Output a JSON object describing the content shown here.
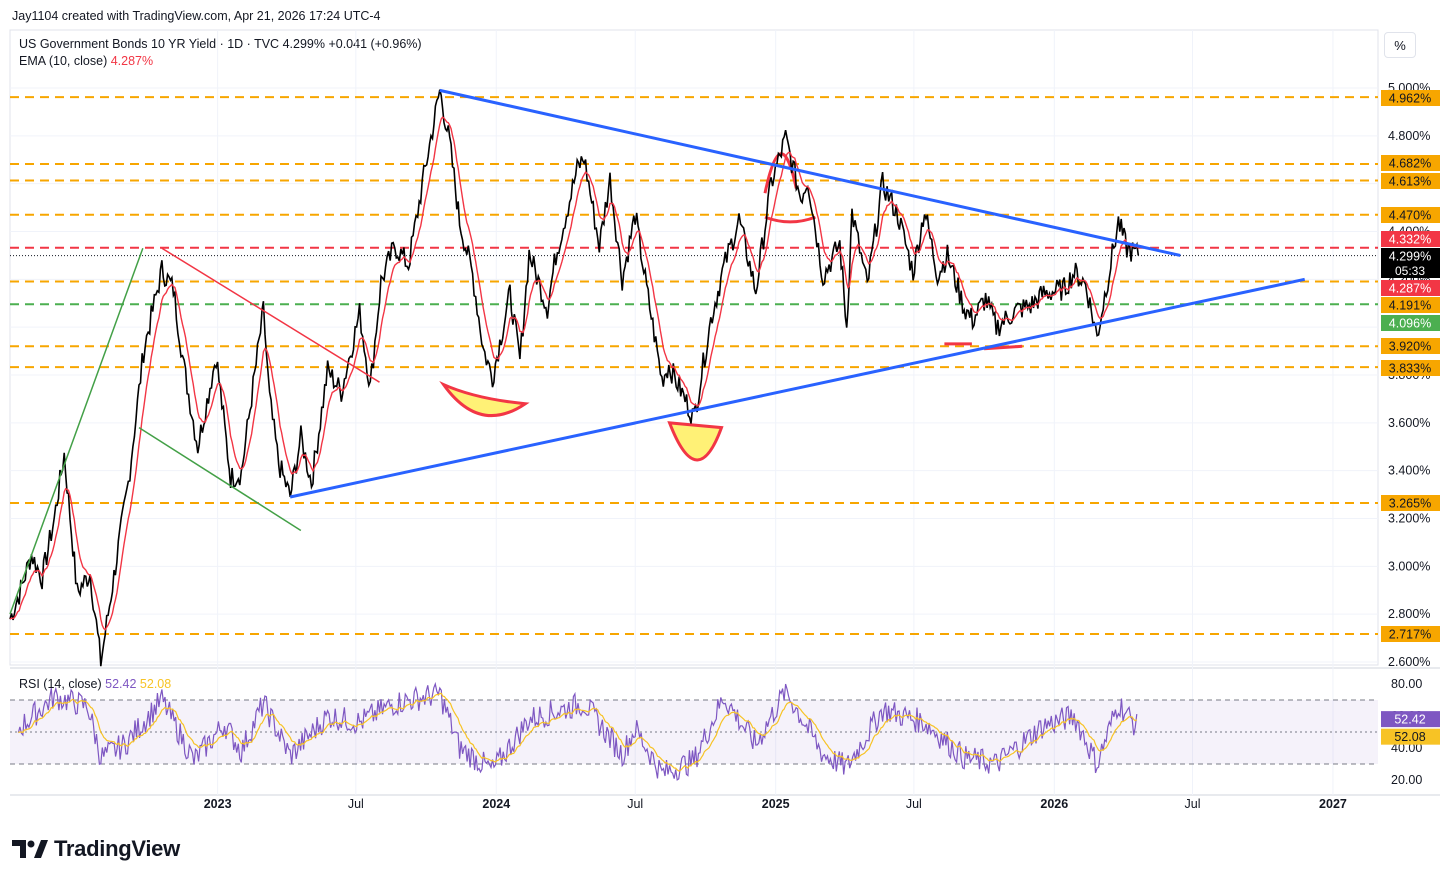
{
  "header": {
    "created_by": "Jay1104 created with TradingView.com, Apr 21, 2026 17:24 UTC-4"
  },
  "legend": {
    "symbol": "US Government Bonds 10 YR Yield · 1D · TVC",
    "last": "4.299%",
    "change": "+0.041 (+0.96%)",
    "ema_label": "EMA (10, close)",
    "ema_value": "4.287%"
  },
  "toolbar": {
    "percent_button": "%"
  },
  "price_axis": {
    "ticks": [
      "5.000%",
      "4.800%",
      "4.600%",
      "4.400%",
      "4.200%",
      "4.000%",
      "3.800%",
      "3.600%",
      "3.400%",
      "3.200%",
      "3.000%",
      "2.800%",
      "2.600%"
    ],
    "level_labels": [
      "4.962%",
      "4.682%",
      "4.613%",
      "4.470%",
      "4.332%",
      "4.299%",
      "05:33",
      "4.287%",
      "4.191%",
      "4.096%",
      "3.920%",
      "3.833%",
      "3.265%",
      "2.717%"
    ]
  },
  "time_axis": {
    "labels": [
      "2023",
      "Jul",
      "2024",
      "Jul",
      "2025",
      "Jul",
      "2026",
      "Jul",
      "2027"
    ]
  },
  "rsi": {
    "label": "RSI (14, close)",
    "value": "52.42",
    "ma_value": "52.08",
    "ticks": [
      "80.00",
      "60.00",
      "40.00",
      "20.00"
    ]
  },
  "brand": {
    "name": "TradingView"
  },
  "colors": {
    "price_line": "#000000",
    "ema": "#f23645",
    "trendline_blue": "#2962ff",
    "level_orange": "#f7a600",
    "level_red": "#f23645",
    "level_green": "#22ab94",
    "rsi_line": "#7e57c2",
    "rsi_ma": "#f7c325",
    "annotation_fill": "#fff176"
  },
  "chart_data": {
    "type": "line",
    "title": "US Government Bonds 10 YR Yield · 1D · TVC",
    "ylim": [
      2.55,
      5.05
    ],
    "x_range": [
      "2022-04-04",
      "2027-03-01"
    ],
    "series": [
      {
        "name": "US Government Bonds 10 YR Yield",
        "points": [
          [
            "2022-04-04",
            2.78
          ],
          [
            "2022-04-18",
            2.9
          ],
          [
            "2022-05-02",
            3.05
          ],
          [
            "2022-05-16",
            2.95
          ],
          [
            "2022-06-01",
            3.2
          ],
          [
            "2022-06-14",
            3.47
          ],
          [
            "2022-07-01",
            2.89
          ],
          [
            "2022-07-18",
            2.97
          ],
          [
            "2022-08-01",
            2.6
          ],
          [
            "2022-08-22",
            3.04
          ],
          [
            "2022-09-06",
            3.35
          ],
          [
            "2022-09-26",
            3.9
          ],
          [
            "2022-10-20",
            4.24
          ],
          [
            "2022-11-04",
            4.16
          ],
          [
            "2022-11-18",
            3.83
          ],
          [
            "2022-12-06",
            3.5
          ],
          [
            "2022-12-30",
            3.88
          ],
          [
            "2023-01-18",
            3.37
          ],
          [
            "2023-02-01",
            3.39
          ],
          [
            "2023-03-02",
            4.07
          ],
          [
            "2023-03-10",
            3.7
          ],
          [
            "2023-03-22",
            3.43
          ],
          [
            "2023-04-06",
            3.29
          ],
          [
            "2023-04-20",
            3.54
          ],
          [
            "2023-05-04",
            3.35
          ],
          [
            "2023-05-25",
            3.82
          ],
          [
            "2023-06-12",
            3.73
          ],
          [
            "2023-07-06",
            4.06
          ],
          [
            "2023-07-20",
            3.75
          ],
          [
            "2023-08-03",
            4.19
          ],
          [
            "2023-08-21",
            4.34
          ],
          [
            "2023-09-08",
            4.26
          ],
          [
            "2023-09-28",
            4.63
          ],
          [
            "2023-10-19",
            4.99
          ],
          [
            "2023-11-01",
            4.77
          ],
          [
            "2023-11-14",
            4.44
          ],
          [
            "2023-12-01",
            4.22
          ],
          [
            "2023-12-15",
            3.91
          ],
          [
            "2023-12-27",
            3.79
          ],
          [
            "2024-01-19",
            4.14
          ],
          [
            "2024-02-01",
            3.86
          ],
          [
            "2024-02-13",
            4.31
          ],
          [
            "2024-03-08",
            4.08
          ],
          [
            "2024-03-19",
            4.3
          ],
          [
            "2024-04-16",
            4.66
          ],
          [
            "2024-04-25",
            4.71
          ],
          [
            "2024-05-15",
            4.34
          ],
          [
            "2024-05-29",
            4.62
          ],
          [
            "2024-06-14",
            4.2
          ],
          [
            "2024-07-01",
            4.47
          ],
          [
            "2024-07-16",
            4.16
          ],
          [
            "2024-08-05",
            3.78
          ],
          [
            "2024-08-14",
            3.84
          ],
          [
            "2024-09-16",
            3.62
          ],
          [
            "2024-10-08",
            4.03
          ],
          [
            "2024-10-25",
            4.25
          ],
          [
            "2024-11-14",
            4.45
          ],
          [
            "2024-12-06",
            4.15
          ],
          [
            "2024-12-26",
            4.6
          ],
          [
            "2025-01-14",
            4.79
          ],
          [
            "2025-02-03",
            4.54
          ],
          [
            "2025-02-12",
            4.62
          ],
          [
            "2025-03-04",
            4.21
          ],
          [
            "2025-03-26",
            4.35
          ],
          [
            "2025-04-04",
            4.0
          ],
          [
            "2025-04-11",
            4.48
          ],
          [
            "2025-05-01",
            4.17
          ],
          [
            "2025-05-21",
            4.6
          ],
          [
            "2025-06-10",
            4.47
          ],
          [
            "2025-06-30",
            4.23
          ],
          [
            "2025-07-15",
            4.49
          ],
          [
            "2025-08-01",
            4.22
          ],
          [
            "2025-08-14",
            4.3
          ],
          [
            "2025-09-05",
            4.08
          ],
          [
            "2025-09-16",
            4.03
          ],
          [
            "2025-10-03",
            4.12
          ],
          [
            "2025-10-17",
            4.0
          ],
          [
            "2025-11-12",
            4.07
          ],
          [
            "2025-12-01",
            4.09
          ],
          [
            "2025-12-18",
            4.14
          ],
          [
            "2026-01-14",
            4.16
          ],
          [
            "2026-01-27",
            4.23
          ],
          [
            "2026-02-11",
            4.18
          ],
          [
            "2026-02-26",
            3.96
          ],
          [
            "2026-03-12",
            4.2
          ],
          [
            "2026-03-26",
            4.44
          ],
          [
            "2026-04-06",
            4.33
          ],
          [
            "2026-04-21",
            4.3
          ]
        ]
      }
    ],
    "horizontal_levels": [
      4.962,
      4.682,
      4.613,
      4.47,
      4.332,
      4.287,
      4.191,
      4.096,
      3.92,
      3.833,
      3.265,
      2.717
    ],
    "trendlines": [
      {
        "from": [
          "2023-10-19",
          4.99
        ],
        "to": [
          "2026-06-15",
          4.3
        ]
      },
      {
        "from": [
          "2023-04-06",
          3.29
        ],
        "to": [
          "2026-11-25",
          4.2
        ]
      },
      {
        "from": [
          "2022-10-20",
          4.33
        ],
        "to": [
          "2023-08-01",
          3.77
        ]
      },
      {
        "from": [
          "2022-09-20",
          3.58
        ],
        "to": [
          "2023-04-20",
          3.15
        ]
      }
    ]
  },
  "rsi_data": {
    "ylim": [
      15,
      85
    ],
    "bands": [
      70,
      50,
      30
    ],
    "points": [
      [
        "2022-04-15",
        52
      ],
      [
        "2022-06-01",
        72
      ],
      [
        "2022-07-15",
        66
      ],
      [
        "2022-08-01",
        34
      ],
      [
        "2022-09-01",
        42
      ],
      [
        "2022-10-20",
        70
      ],
      [
        "2022-12-01",
        32
      ],
      [
        "2023-01-10",
        55
      ],
      [
        "2023-02-01",
        38
      ],
      [
        "2023-03-02",
        68
      ],
      [
        "2023-04-06",
        35
      ],
      [
        "2023-05-25",
        60
      ],
      [
        "2023-07-06",
        56
      ],
      [
        "2023-08-21",
        68
      ],
      [
        "2023-10-19",
        74
      ],
      [
        "2023-11-14",
        40
      ],
      [
        "2023-12-27",
        26
      ],
      [
        "2024-02-13",
        58
      ],
      [
        "2024-04-25",
        68
      ],
      [
        "2024-06-14",
        36
      ],
      [
        "2024-07-01",
        52
      ],
      [
        "2024-08-05",
        24
      ],
      [
        "2024-09-16",
        32
      ],
      [
        "2024-10-25",
        72
      ],
      [
        "2024-12-06",
        42
      ],
      [
        "2025-01-14",
        76
      ],
      [
        "2025-03-04",
        36
      ],
      [
        "2025-04-04",
        28
      ],
      [
        "2025-05-21",
        64
      ],
      [
        "2025-07-15",
        56
      ],
      [
        "2025-09-05",
        34
      ],
      [
        "2025-10-17",
        30
      ],
      [
        "2025-12-18",
        54
      ],
      [
        "2026-01-27",
        60
      ],
      [
        "2026-02-26",
        30
      ],
      [
        "2026-03-26",
        68
      ],
      [
        "2026-04-21",
        52
      ]
    ]
  }
}
